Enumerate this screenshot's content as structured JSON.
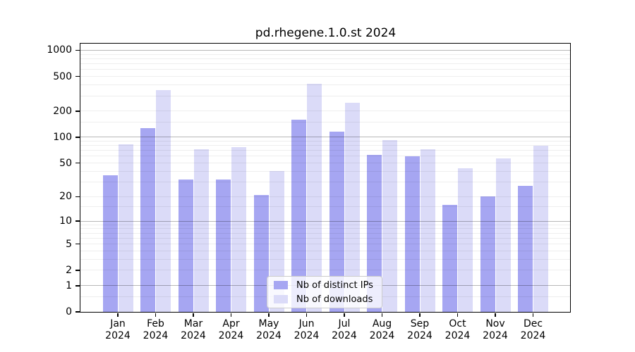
{
  "figure": {
    "title": "pd.rhegene.1.0.st 2024"
  },
  "chart_data": {
    "type": "bar",
    "title": "pd.rhegene.1.0.st 2024",
    "categories": [
      "Jan",
      "Feb",
      "Mar",
      "Apr",
      "May",
      "Jun",
      "Jul",
      "Aug",
      "Sep",
      "Oct",
      "Nov",
      "Dec"
    ],
    "category_year": "2024",
    "series": [
      {
        "name": "Nb of distinct IPs",
        "color": "#a6a6f2",
        "values": [
          36,
          128,
          32,
          32,
          21,
          160,
          116,
          62,
          60,
          16,
          20,
          27
        ]
      },
      {
        "name": "Nb of downloads",
        "color": "#dbdbf8",
        "values": [
          82,
          350,
          73,
          76,
          40,
          410,
          250,
          92,
          72,
          43,
          57,
          79
        ]
      }
    ],
    "y_scale": "log10(1+y)",
    "ylim": [
      0,
      1190
    ],
    "y_max": 1190,
    "y_ticks": [
      1000,
      500,
      200,
      100,
      50,
      20,
      10,
      5,
      2,
      1,
      0
    ],
    "y_major_gridlines": [
      1,
      10,
      100,
      1000
    ],
    "y_minor_gridlines": [
      0.5,
      2,
      3,
      4,
      5,
      6,
      7,
      8,
      9,
      15,
      20,
      30,
      40,
      50,
      60,
      70,
      80,
      90,
      150,
      200,
      300,
      400,
      500,
      600,
      700,
      800,
      900
    ],
    "grid": true,
    "legend_position": "lower-center",
    "colors": {
      "bar_distinct_ips": "#a6a6f2",
      "bar_downloads": "#dbdbf8",
      "spine": "#000000",
      "legend_border": "#cccccc"
    }
  }
}
